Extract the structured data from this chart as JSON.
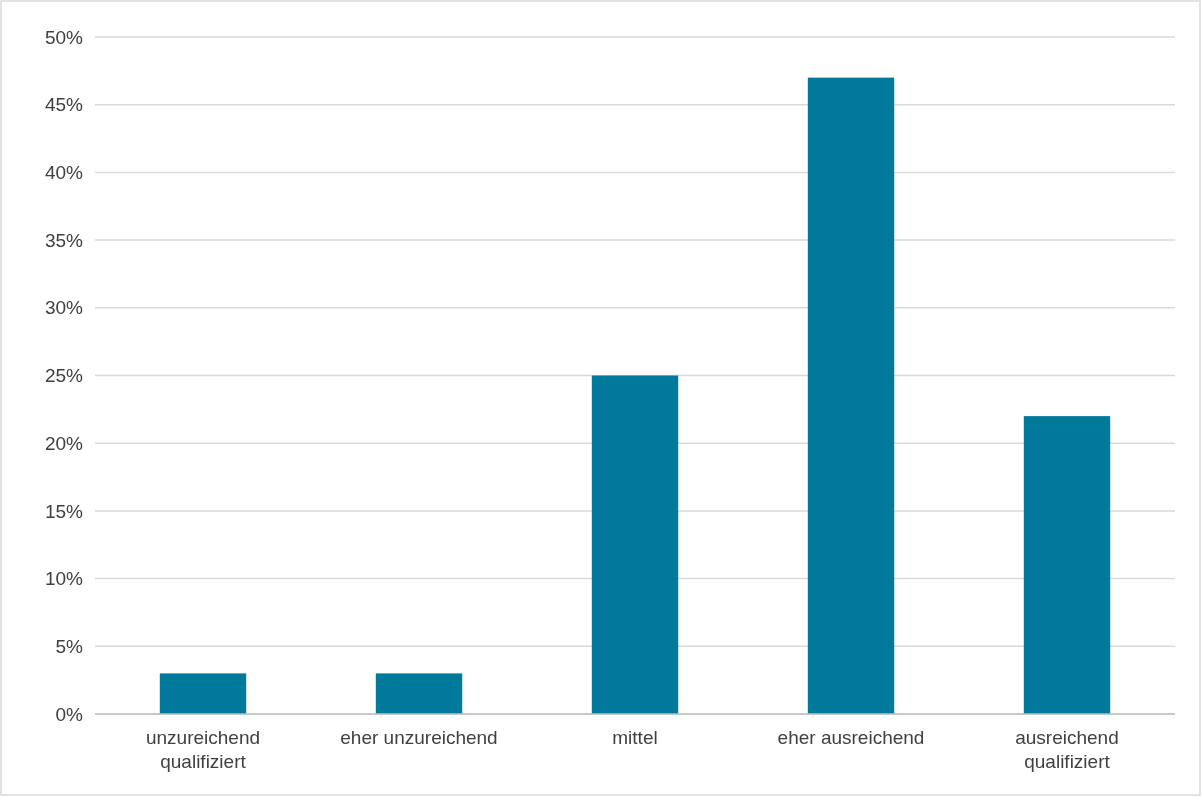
{
  "chart_data": {
    "type": "bar",
    "categories": [
      "unzureichend qualifiziert",
      "eher unzureichend",
      "mittel",
      "eher ausreichend",
      "ausreichend qualifiziert"
    ],
    "values": [
      3,
      3,
      25,
      47,
      22
    ],
    "color": "#00799a",
    "ylim": [
      0,
      50
    ],
    "yticks": [
      {
        "value": 0,
        "label": "0%"
      },
      {
        "value": 5,
        "label": "5%"
      },
      {
        "value": 10,
        "label": "10%"
      },
      {
        "value": 15,
        "label": "15%"
      },
      {
        "value": 20,
        "label": "20%"
      },
      {
        "value": 25,
        "label": "25%"
      },
      {
        "value": 30,
        "label": "30%"
      },
      {
        "value": 35,
        "label": "35%"
      },
      {
        "value": 40,
        "label": "40%"
      },
      {
        "value": 45,
        "label": "45%"
      },
      {
        "value": 50,
        "label": "50%"
      }
    ],
    "grid": "y"
  }
}
